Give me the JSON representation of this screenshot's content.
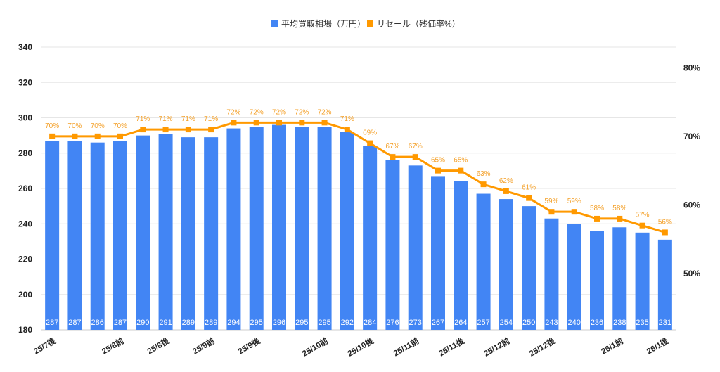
{
  "chart_data": {
    "type": "bar+line",
    "title": "",
    "legend_position": "top",
    "categories": [
      "25/7後",
      "",
      "",
      "25/8前",
      "",
      "25/8後",
      "",
      "25/9前",
      "",
      "25/9後",
      "",
      "",
      "25/10前",
      "",
      "25/10後",
      "",
      "25/11前",
      "",
      "25/11後",
      "",
      "25/12前",
      "",
      "25/12後",
      "",
      "",
      "26/1前",
      "",
      "26/1後"
    ],
    "series": [
      {
        "name": "平均買取相場（万円）",
        "type": "bar",
        "axis": "left",
        "color": "#4285f4",
        "values": [
          287,
          287,
          286,
          287,
          290,
          291,
          289,
          289,
          294,
          295,
          296,
          295,
          295,
          292,
          284,
          276,
          273,
          267,
          264,
          257,
          254,
          250,
          243,
          240,
          236,
          238,
          235,
          231
        ]
      },
      {
        "name": "リセール（残価率%）",
        "type": "line",
        "axis": "right",
        "color": "#ff9900",
        "values": [
          70,
          70,
          70,
          70,
          71,
          71,
          71,
          71,
          72,
          72,
          72,
          72,
          72,
          71,
          69,
          67,
          67,
          65,
          65,
          63,
          62,
          61,
          59,
          59,
          58,
          58,
          57,
          56
        ]
      }
    ],
    "left_axis": {
      "ticks": [
        180,
        200,
        220,
        240,
        260,
        280,
        300,
        320,
        340
      ],
      "range": [
        180,
        340
      ]
    },
    "right_axis": {
      "ticks": [
        "50%",
        "60%",
        "70%",
        "80%"
      ],
      "tick_values": [
        50,
        60,
        70,
        80
      ],
      "range": [
        41.8,
        83
      ]
    },
    "grid": true
  }
}
